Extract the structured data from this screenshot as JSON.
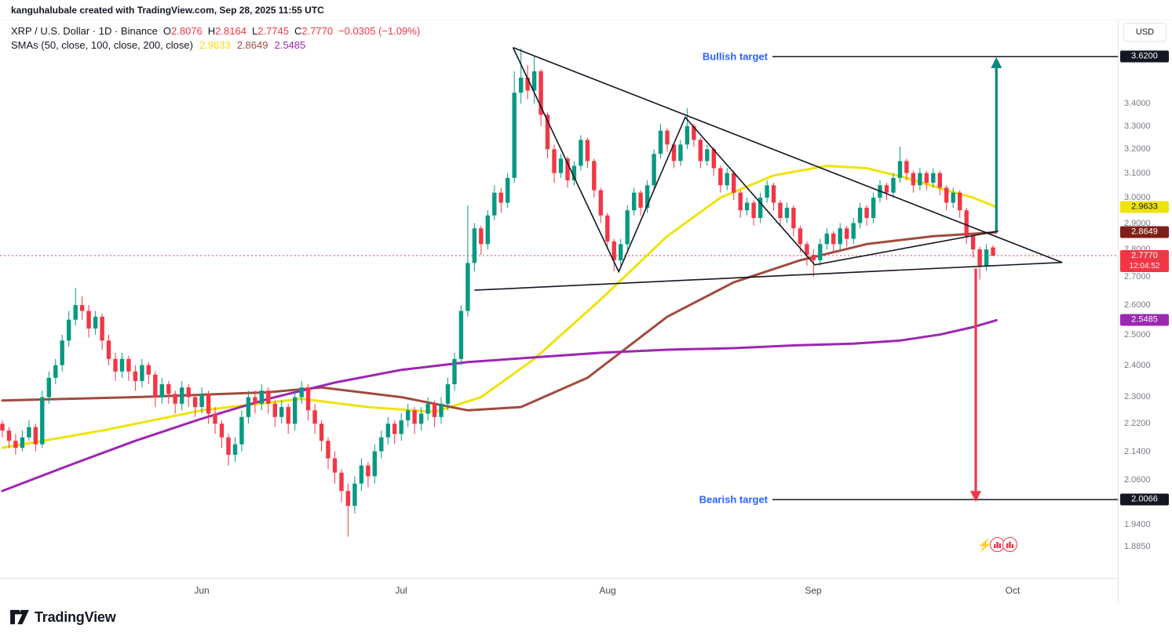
{
  "meta": {
    "creator_line": "kanguhalubale created with TradingView.com, Sep 28, 2025 11:55 UTC"
  },
  "legend": {
    "title": "XRP / U.S. Dollar · 1D · Binance",
    "o_label": "O",
    "o": "2.8076",
    "h_label": "H",
    "h": "2.8164",
    "l_label": "L",
    "l": "2.7745",
    "c_label": "C",
    "c": "2.7770",
    "change": "−0.0305 (−1.09%)",
    "smas_label": "SMAs (50, close, 100, close, 200, close)",
    "sma50_value": "2.9633",
    "sma100_value": "2.8649",
    "sma200_value": "2.5485"
  },
  "annotations": {
    "bullish_label": "Bullish target",
    "bullish_price": 3.62,
    "bearish_label": "Bearish target",
    "bearish_price": 2.0066
  },
  "axis": {
    "currency": "USD",
    "ticks": [
      {
        "label": "3.4000",
        "price": 3.4
      },
      {
        "label": "3.3000",
        "price": 3.3
      },
      {
        "label": "3.2000",
        "price": 3.2
      },
      {
        "label": "3.1000",
        "price": 3.1
      },
      {
        "label": "3.0000",
        "price": 3.0
      },
      {
        "label": "2.9000",
        "price": 2.9
      },
      {
        "label": "2.8000",
        "price": 2.8
      },
      {
        "label": "2.7000",
        "price": 2.7
      },
      {
        "label": "2.6000",
        "price": 2.6
      },
      {
        "label": "2.5000",
        "price": 2.5
      },
      {
        "label": "2.4000",
        "price": 2.4
      },
      {
        "label": "2.3000",
        "price": 2.3
      },
      {
        "label": "2.2200",
        "price": 2.22
      },
      {
        "label": "2.1400",
        "price": 2.14
      },
      {
        "label": "2.0600",
        "price": 2.06
      },
      {
        "label": "1.9400",
        "price": 1.94
      },
      {
        "label": "1.8850",
        "price": 1.885
      }
    ],
    "badges": [
      {
        "label": "3.6200",
        "price": 3.62,
        "type": "t-dark"
      },
      {
        "label": "2.9633",
        "price": 2.9633,
        "type": "t-yellow"
      },
      {
        "label": "2.8649",
        "price": 2.8649,
        "type": "t-brown"
      },
      {
        "label": "2.7770",
        "price": 2.777,
        "type": "t-last",
        "countdown": "12:04:52"
      },
      {
        "label": "2.5485",
        "price": 2.5485,
        "type": "t-purple"
      },
      {
        "label": "2.0066",
        "price": 2.0066,
        "type": "t-dark"
      }
    ],
    "months": [
      {
        "label": "Jun",
        "index": 30
      },
      {
        "label": "Jul",
        "index": 60
      },
      {
        "label": "Aug",
        "index": 91
      },
      {
        "label": "Sep",
        "index": 122
      },
      {
        "label": "Oct",
        "index": 152
      }
    ]
  },
  "colors": {
    "up": "#089981",
    "down": "#f23645",
    "sma50": "#f0e30c",
    "sma100": "#a14b3f",
    "sma200": "#9c27b0",
    "accent_blue": "#2962ff",
    "text_dark": "#131722",
    "axis_text": "#787b86",
    "bull_arrow": "#00897b"
  },
  "footer": {
    "brand": "TradingView"
  },
  "chart_data": {
    "type": "candlestick",
    "symbol": "XRP/USD",
    "interval": "1D",
    "exchange": "Binance",
    "scale": "log",
    "price_range_visible": [
      1.885,
      3.66
    ],
    "last_price": 2.777,
    "targets": [
      {
        "name": "bullish-target",
        "price": 3.62
      },
      {
        "name": "bearish-target",
        "price": 2.0066
      }
    ],
    "candles": [
      [
        2.22,
        2.23,
        2.18,
        2.2
      ],
      [
        2.2,
        2.21,
        2.15,
        2.17
      ],
      [
        2.17,
        2.19,
        2.13,
        2.15
      ],
      [
        2.15,
        2.2,
        2.14,
        2.18
      ],
      [
        2.18,
        2.23,
        2.17,
        2.21
      ],
      [
        2.21,
        2.22,
        2.14,
        2.16
      ],
      [
        2.16,
        2.32,
        2.15,
        2.3
      ],
      [
        2.3,
        2.38,
        2.28,
        2.36
      ],
      [
        2.36,
        2.42,
        2.34,
        2.4
      ],
      [
        2.4,
        2.5,
        2.38,
        2.48
      ],
      [
        2.48,
        2.58,
        2.46,
        2.55
      ],
      [
        2.55,
        2.66,
        2.53,
        2.6
      ],
      [
        2.6,
        2.63,
        2.55,
        2.58
      ],
      [
        2.58,
        2.6,
        2.49,
        2.52
      ],
      [
        2.52,
        2.58,
        2.5,
        2.56
      ],
      [
        2.56,
        2.57,
        2.45,
        2.48
      ],
      [
        2.48,
        2.5,
        2.4,
        2.42
      ],
      [
        2.42,
        2.44,
        2.35,
        2.38
      ],
      [
        2.38,
        2.44,
        2.36,
        2.42
      ],
      [
        2.42,
        2.43,
        2.35,
        2.38
      ],
      [
        2.38,
        2.4,
        2.32,
        2.35
      ],
      [
        2.35,
        2.42,
        2.33,
        2.4
      ],
      [
        2.4,
        2.41,
        2.34,
        2.37
      ],
      [
        2.37,
        2.38,
        2.27,
        2.3
      ],
      [
        2.3,
        2.36,
        2.28,
        2.34
      ],
      [
        2.34,
        2.35,
        2.28,
        2.31
      ],
      [
        2.31,
        2.32,
        2.25,
        2.28
      ],
      [
        2.28,
        2.35,
        2.26,
        2.33
      ],
      [
        2.33,
        2.34,
        2.27,
        2.3
      ],
      [
        2.3,
        2.31,
        2.24,
        2.27
      ],
      [
        2.27,
        2.33,
        2.25,
        2.31
      ],
      [
        2.31,
        2.32,
        2.22,
        2.25
      ],
      [
        2.25,
        2.27,
        2.19,
        2.22
      ],
      [
        2.22,
        2.23,
        2.15,
        2.18
      ],
      [
        2.18,
        2.19,
        2.1,
        2.13
      ],
      [
        2.13,
        2.18,
        2.11,
        2.16
      ],
      [
        2.16,
        2.26,
        2.14,
        2.24
      ],
      [
        2.24,
        2.32,
        2.22,
        2.3
      ],
      [
        2.3,
        2.32,
        2.25,
        2.28
      ],
      [
        2.28,
        2.34,
        2.26,
        2.32
      ],
      [
        2.32,
        2.33,
        2.25,
        2.28
      ],
      [
        2.28,
        2.29,
        2.21,
        2.24
      ],
      [
        2.24,
        2.29,
        2.22,
        2.27
      ],
      [
        2.27,
        2.28,
        2.19,
        2.22
      ],
      [
        2.22,
        2.32,
        2.2,
        2.3
      ],
      [
        2.3,
        2.35,
        2.28,
        2.33
      ],
      [
        2.33,
        2.34,
        2.23,
        2.26
      ],
      [
        2.26,
        2.28,
        2.19,
        2.22
      ],
      [
        2.22,
        2.23,
        2.14,
        2.17
      ],
      [
        2.17,
        2.18,
        2.09,
        2.12
      ],
      [
        2.12,
        2.14,
        2.05,
        2.08
      ],
      [
        2.08,
        2.09,
        2.0,
        2.03
      ],
      [
        2.03,
        2.05,
        1.91,
        1.99
      ],
      [
        1.99,
        2.07,
        1.97,
        2.05
      ],
      [
        2.05,
        2.12,
        2.03,
        2.1
      ],
      [
        2.1,
        2.11,
        2.04,
        2.07
      ],
      [
        2.07,
        2.16,
        2.05,
        2.14
      ],
      [
        2.14,
        2.2,
        2.12,
        2.18
      ],
      [
        2.18,
        2.24,
        2.16,
        2.22
      ],
      [
        2.22,
        2.23,
        2.16,
        2.19
      ],
      [
        2.19,
        2.25,
        2.17,
        2.23
      ],
      [
        2.23,
        2.28,
        2.21,
        2.26
      ],
      [
        2.26,
        2.27,
        2.19,
        2.22
      ],
      [
        2.22,
        2.27,
        2.2,
        2.25
      ],
      [
        2.25,
        2.3,
        2.23,
        2.28
      ],
      [
        2.28,
        2.29,
        2.21,
        2.24
      ],
      [
        2.24,
        2.3,
        2.22,
        2.28
      ],
      [
        2.28,
        2.36,
        2.26,
        2.34
      ],
      [
        2.34,
        2.44,
        2.32,
        2.42
      ],
      [
        2.42,
        2.6,
        2.4,
        2.58
      ],
      [
        2.58,
        2.97,
        2.56,
        2.75
      ],
      [
        2.75,
        2.9,
        2.72,
        2.88
      ],
      [
        2.88,
        2.89,
        2.78,
        2.82
      ],
      [
        2.82,
        2.95,
        2.8,
        2.93
      ],
      [
        2.93,
        3.05,
        2.91,
        3.02
      ],
      [
        3.02,
        3.04,
        2.94,
        2.98
      ],
      [
        2.98,
        3.1,
        2.96,
        3.08
      ],
      [
        3.08,
        3.55,
        3.06,
        3.45
      ],
      [
        3.45,
        3.66,
        3.4,
        3.52
      ],
      [
        3.52,
        3.58,
        3.42,
        3.46
      ],
      [
        3.46,
        3.62,
        3.4,
        3.55
      ],
      [
        3.55,
        3.56,
        3.3,
        3.35
      ],
      [
        3.35,
        3.36,
        3.16,
        3.2
      ],
      [
        3.2,
        3.22,
        3.06,
        3.1
      ],
      [
        3.1,
        3.18,
        3.08,
        3.16
      ],
      [
        3.16,
        3.17,
        3.04,
        3.07
      ],
      [
        3.07,
        3.15,
        3.05,
        3.13
      ],
      [
        3.13,
        3.26,
        3.11,
        3.24
      ],
      [
        3.24,
        3.25,
        3.12,
        3.15
      ],
      [
        3.15,
        3.16,
        3.0,
        3.03
      ],
      [
        3.03,
        3.04,
        2.9,
        2.93
      ],
      [
        2.93,
        2.94,
        2.8,
        2.83
      ],
      [
        2.83,
        2.84,
        2.72,
        2.76
      ],
      [
        2.76,
        2.84,
        2.74,
        2.82
      ],
      [
        2.82,
        2.97,
        2.8,
        2.95
      ],
      [
        2.95,
        3.04,
        2.93,
        3.02
      ],
      [
        3.02,
        3.03,
        2.93,
        2.96
      ],
      [
        2.96,
        3.07,
        2.94,
        3.05
      ],
      [
        3.05,
        3.2,
        3.03,
        3.18
      ],
      [
        3.18,
        3.31,
        3.16,
        3.28
      ],
      [
        3.28,
        3.29,
        3.19,
        3.22
      ],
      [
        3.22,
        3.23,
        3.12,
        3.15
      ],
      [
        3.15,
        3.24,
        3.13,
        3.22
      ],
      [
        3.22,
        3.38,
        3.2,
        3.3
      ],
      [
        3.3,
        3.31,
        3.21,
        3.24
      ],
      [
        3.24,
        3.25,
        3.12,
        3.15
      ],
      [
        3.15,
        3.22,
        3.13,
        3.2
      ],
      [
        3.2,
        3.21,
        3.09,
        3.12
      ],
      [
        3.12,
        3.13,
        3.02,
        3.05
      ],
      [
        3.05,
        3.12,
        3.03,
        3.1
      ],
      [
        3.1,
        3.11,
        2.99,
        3.02
      ],
      [
        3.02,
        3.03,
        2.92,
        2.95
      ],
      [
        2.95,
        3.0,
        2.93,
        2.98
      ],
      [
        2.98,
        2.99,
        2.89,
        2.92
      ],
      [
        2.92,
        3.02,
        2.9,
        3.0
      ],
      [
        3.0,
        3.07,
        2.98,
        3.05
      ],
      [
        3.05,
        3.06,
        2.95,
        2.98
      ],
      [
        2.98,
        2.99,
        2.89,
        2.92
      ],
      [
        2.92,
        2.98,
        2.9,
        2.96
      ],
      [
        2.96,
        2.97,
        2.85,
        2.88
      ],
      [
        2.88,
        2.89,
        2.79,
        2.82
      ],
      [
        2.82,
        2.83,
        2.74,
        2.78
      ],
      [
        2.78,
        2.8,
        2.7,
        2.76
      ],
      [
        2.76,
        2.84,
        2.74,
        2.82
      ],
      [
        2.82,
        2.88,
        2.8,
        2.86
      ],
      [
        2.86,
        2.87,
        2.79,
        2.82
      ],
      [
        2.82,
        2.9,
        2.8,
        2.88
      ],
      [
        2.88,
        2.89,
        2.81,
        2.84
      ],
      [
        2.84,
        2.92,
        2.82,
        2.9
      ],
      [
        2.9,
        2.98,
        2.88,
        2.96
      ],
      [
        2.96,
        2.97,
        2.89,
        2.92
      ],
      [
        2.92,
        3.02,
        2.9,
        3.0
      ],
      [
        3.0,
        3.07,
        2.98,
        3.05
      ],
      [
        3.05,
        3.06,
        2.99,
        3.02
      ],
      [
        3.02,
        3.1,
        3.0,
        3.08
      ],
      [
        3.08,
        3.21,
        3.06,
        3.15
      ],
      [
        3.15,
        3.16,
        3.07,
        3.1
      ],
      [
        3.1,
        3.11,
        3.02,
        3.05
      ],
      [
        3.05,
        3.12,
        3.03,
        3.1
      ],
      [
        3.1,
        3.11,
        3.03,
        3.06
      ],
      [
        3.06,
        3.12,
        3.04,
        3.1
      ],
      [
        3.1,
        3.11,
        3.01,
        3.04
      ],
      [
        3.04,
        3.05,
        2.95,
        2.98
      ],
      [
        2.98,
        3.04,
        2.96,
        3.02
      ],
      [
        3.02,
        3.03,
        2.92,
        2.95
      ],
      [
        2.95,
        2.96,
        2.82,
        2.85
      ],
      [
        2.85,
        2.86,
        2.77,
        2.8
      ],
      [
        2.8,
        2.81,
        2.69,
        2.74
      ],
      [
        2.74,
        2.82,
        2.72,
        2.8
      ],
      [
        2.8076,
        2.8164,
        2.7745,
        2.777
      ]
    ],
    "smas": [
      {
        "name": "sma-50",
        "period": 50,
        "color": "#f0e30c",
        "last_value": 2.9633,
        "waypoints": [
          [
            0,
            2.15
          ],
          [
            15,
            2.2
          ],
          [
            30,
            2.26
          ],
          [
            45,
            2.295
          ],
          [
            55,
            2.27
          ],
          [
            65,
            2.255
          ],
          [
            72,
            2.3
          ],
          [
            80,
            2.42
          ],
          [
            90,
            2.62
          ],
          [
            100,
            2.85
          ],
          [
            108,
            3.0
          ],
          [
            116,
            3.09
          ],
          [
            124,
            3.13
          ],
          [
            130,
            3.12
          ],
          [
            136,
            3.08
          ],
          [
            142,
            3.03
          ],
          [
            146,
            3.0
          ],
          [
            149.5,
            2.963
          ]
        ]
      },
      {
        "name": "sma-100",
        "period": 100,
        "color": "#a14b3f",
        "last_value": 2.8649,
        "waypoints": [
          [
            0,
            2.29
          ],
          [
            20,
            2.3
          ],
          [
            40,
            2.315
          ],
          [
            48,
            2.33
          ],
          [
            60,
            2.3
          ],
          [
            70,
            2.26
          ],
          [
            78,
            2.27
          ],
          [
            88,
            2.36
          ],
          [
            100,
            2.56
          ],
          [
            110,
            2.68
          ],
          [
            120,
            2.76
          ],
          [
            130,
            2.82
          ],
          [
            140,
            2.85
          ],
          [
            149.5,
            2.865
          ]
        ]
      },
      {
        "name": "sma-200",
        "period": 200,
        "color": "#9c27b0",
        "last_value": 2.5485,
        "waypoints": [
          [
            0,
            2.03
          ],
          [
            10,
            2.1
          ],
          [
            20,
            2.17
          ],
          [
            30,
            2.235
          ],
          [
            40,
            2.295
          ],
          [
            50,
            2.345
          ],
          [
            60,
            2.385
          ],
          [
            70,
            2.41
          ],
          [
            80,
            2.425
          ],
          [
            90,
            2.44
          ],
          [
            100,
            2.45
          ],
          [
            110,
            2.455
          ],
          [
            120,
            2.465
          ],
          [
            128,
            2.47
          ],
          [
            135,
            2.48
          ],
          [
            141,
            2.5
          ],
          [
            146,
            2.525
          ],
          [
            149.5,
            2.548
          ]
        ]
      }
    ],
    "pattern_lines": [
      {
        "name": "upper-trendline",
        "points": [
          [
            76.8,
            3.664
          ],
          [
            159.4,
            2.752
          ]
        ]
      },
      {
        "name": "lower-trendline",
        "points": [
          [
            71.0,
            2.652
          ],
          [
            159.4,
            2.752
          ]
        ]
      },
      {
        "name": "zigzag-line",
        "points": [
          [
            76.8,
            3.664
          ],
          [
            92.7,
            2.718
          ],
          [
            102.7,
            3.339
          ],
          [
            122.2,
            2.743
          ],
          [
            149.8,
            2.87
          ]
        ]
      }
    ],
    "arrows": [
      {
        "name": "bullish-arrow",
        "x_index": 149.5,
        "from": 2.87,
        "to": 3.565,
        "color": "#00897b"
      },
      {
        "name": "bearish-arrow",
        "x_index": 146.4,
        "from": 2.73,
        "to": 2.03,
        "color": "#f23645"
      }
    ]
  }
}
